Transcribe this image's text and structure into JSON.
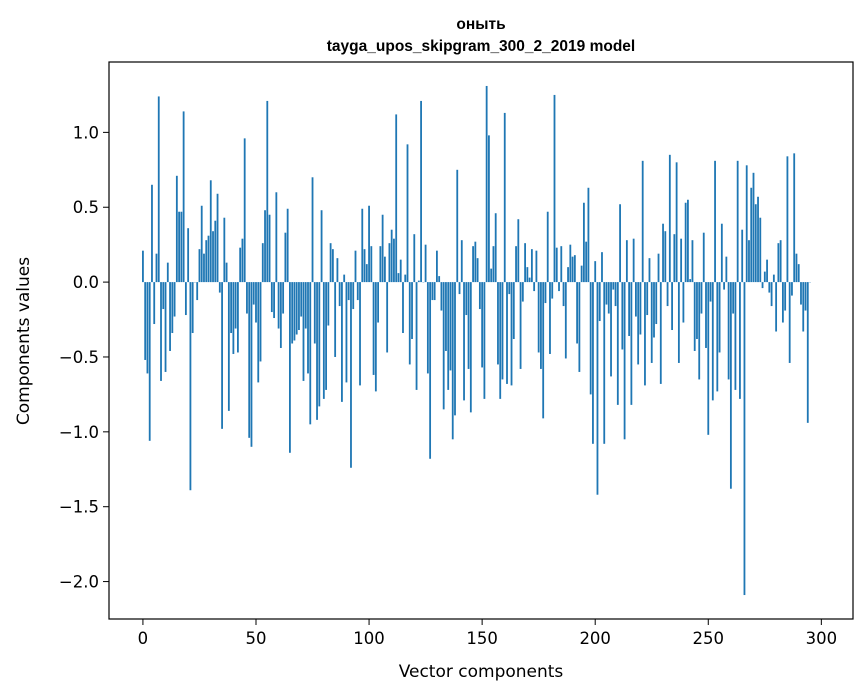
{
  "chart_data": {
    "type": "bar",
    "title": "оныть",
    "subtitle": "tayga_upos_skipgram_300_2_2019 model",
    "xlabel": "Vector components",
    "ylabel": "Components values",
    "xlim": [
      -15,
      314
    ],
    "ylim": [
      -2.25,
      1.47
    ],
    "xticks": [
      0,
      50,
      100,
      150,
      200,
      250,
      300
    ],
    "xtick_labels": [
      "0",
      "50",
      "100",
      "150",
      "200",
      "250",
      "300"
    ],
    "yticks": [
      1.0,
      0.5,
      0.0,
      -0.5,
      -1.0,
      -1.5,
      -2.0
    ],
    "ytick_labels": [
      "1.0",
      "0.5",
      "0.0",
      "−0.5",
      "−1.0",
      "−1.5",
      "−2.0"
    ],
    "bar_color": "#1f77b4",
    "values": [
      0.21,
      -0.52,
      -0.61,
      -1.06,
      0.65,
      -0.28,
      0.19,
      1.24,
      -0.66,
      -0.18,
      -0.6,
      0.13,
      -0.46,
      -0.34,
      -0.23,
      0.71,
      0.47,
      0.47,
      1.14,
      -0.22,
      0.36,
      -1.39,
      -0.34,
      0.0,
      -0.12,
      0.22,
      0.51,
      0.19,
      0.28,
      0.31,
      0.68,
      0.34,
      0.41,
      0.59,
      -0.07,
      -0.98,
      0.43,
      0.13,
      -0.86,
      -0.34,
      -0.48,
      -0.31,
      -0.47,
      0.23,
      0.29,
      0.96,
      -0.21,
      -1.04,
      -1.1,
      -0.15,
      -0.27,
      -0.67,
      -0.53,
      0.26,
      0.48,
      1.21,
      0.45,
      -0.2,
      -0.24,
      0.6,
      -0.31,
      -0.44,
      -0.21,
      0.33,
      0.49,
      -1.14,
      -0.41,
      -0.39,
      -0.35,
      -0.32,
      -0.23,
      -0.66,
      -0.31,
      -0.61,
      -0.95,
      0.7,
      -0.41,
      -0.92,
      -0.83,
      0.48,
      -0.78,
      -0.72,
      -0.29,
      0.26,
      0.22,
      -0.5,
      0.16,
      -0.16,
      -0.8,
      0.05,
      -0.67,
      -0.12,
      -1.24,
      -0.18,
      0.21,
      -0.12,
      -0.69,
      0.49,
      0.22,
      0.12,
      0.51,
      0.24,
      -0.62,
      -0.73,
      -0.27,
      0.24,
      0.45,
      0.17,
      -0.47,
      0.26,
      0.35,
      0.29,
      1.12,
      0.06,
      0.15,
      -0.34,
      0.05,
      0.92,
      -0.55,
      -0.38,
      0.32,
      -0.72,
      0.01,
      1.21,
      0.0,
      0.25,
      -0.61,
      -1.18,
      -0.12,
      -0.12,
      0.21,
      0.04,
      -0.19,
      -0.85,
      -0.46,
      -0.72,
      -0.59,
      -1.05,
      -0.89,
      0.75,
      -0.08,
      0.28,
      -0.79,
      -0.22,
      -0.58,
      -0.87,
      0.24,
      0.27,
      0.16,
      -0.18,
      -0.57,
      -0.78,
      1.31,
      0.98,
      0.09,
      0.24,
      0.46,
      -0.55,
      -0.78,
      -0.65,
      1.13,
      -0.68,
      -0.08,
      -0.69,
      -0.38,
      0.24,
      0.42,
      -0.58,
      -0.13,
      0.26,
      0.1,
      0.03,
      0.22,
      -0.06,
      0.21,
      -0.47,
      -0.58,
      -0.91,
      -0.14,
      0.47,
      -0.48,
      -0.11,
      1.25,
      0.23,
      -0.06,
      0.24,
      -0.16,
      -0.51,
      0.1,
      0.25,
      0.17,
      0.18,
      -0.41,
      -0.6,
      0.11,
      0.53,
      0.27,
      0.63,
      -0.75,
      -1.08,
      0.14,
      -1.42,
      -0.26,
      0.2,
      -1.08,
      -0.15,
      -0.21,
      -0.63,
      -0.05,
      -0.16,
      -0.82,
      0.52,
      -0.45,
      -1.05,
      0.28,
      -0.36,
      -0.82,
      0.29,
      -0.23,
      -0.55,
      -0.35,
      0.81,
      -0.69,
      -0.22,
      0.16,
      -0.54,
      -0.37,
      -0.28,
      0.19,
      -0.68,
      0.39,
      0.34,
      -0.16,
      0.85,
      -0.32,
      0.32,
      0.8,
      -0.54,
      0.29,
      -0.27,
      0.53,
      0.55,
      0.02,
      0.28,
      -0.46,
      -0.38,
      -0.65,
      -0.21,
      0.33,
      -0.44,
      -1.02,
      -0.13,
      -0.79,
      0.81,
      -0.73,
      -0.47,
      0.39,
      -0.05,
      0.17,
      -0.65,
      -1.38,
      -0.21,
      -0.72,
      0.81,
      -0.78,
      0.35,
      -2.09,
      0.78,
      0.28,
      0.63,
      0.73,
      0.52,
      0.57,
      0.43,
      -0.04,
      0.07,
      0.15,
      -0.07,
      -0.16,
      0.05,
      -0.33,
      0.26,
      0.28,
      -0.27,
      -0.19,
      0.84,
      -0.54,
      -0.09,
      0.86,
      0.19,
      0.12,
      -0.15,
      -0.33,
      -0.19,
      -0.94,
      0.0
    ]
  }
}
